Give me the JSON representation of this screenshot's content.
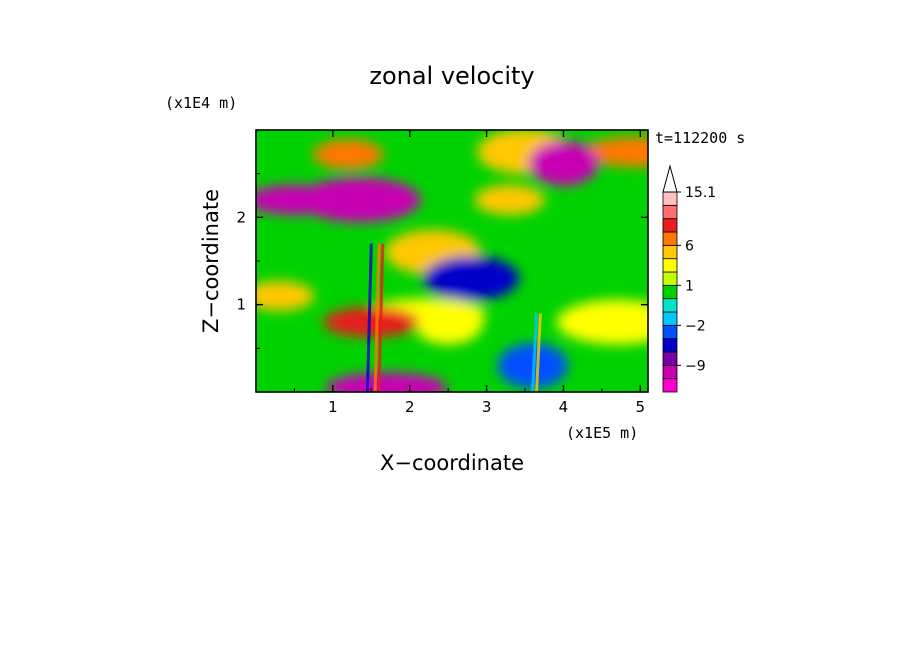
{
  "chart_data": {
    "type": "heatmap",
    "title": "zonal velocity",
    "xlabel": "X−coordinate",
    "ylabel": "Z−coordinate",
    "x_unit": "(x1E5 m)",
    "y_unit": "(x1E4 m)",
    "time_label": "t=112200 s",
    "xlim": [
      0,
      5.1
    ],
    "ylim": [
      0,
      3.0
    ],
    "x_ticks": [
      1,
      2,
      3,
      4,
      5
    ],
    "x_tick_labels": [
      "1",
      "2",
      "3",
      "4",
      "5"
    ],
    "y_ticks": [
      1,
      2
    ],
    "y_tick_labels": [
      "1",
      "2"
    ],
    "colorbar": {
      "tick_labels": [
        "15.1",
        "6",
        "1",
        "−2",
        "−9"
      ],
      "tick_values": [
        15.1,
        6,
        1,
        -2,
        -9
      ],
      "levels": [
        -15,
        -12,
        -9,
        -6,
        -3,
        -2,
        -1,
        0,
        1,
        2,
        3,
        6,
        9,
        12,
        15.1
      ],
      "colors": [
        "#ff00cc",
        "#c800b4",
        "#7800a8",
        "#0000c8",
        "#0050ff",
        "#00c8ff",
        "#00e4c8",
        "#00d200",
        "#c8ff00",
        "#ffff00",
        "#ffc800",
        "#ff7800",
        "#e81e1e",
        "#ff7070",
        "#ffc0c0"
      ],
      "extend": "max"
    },
    "features": [
      {
        "x": 1.2,
        "z": 2.72,
        "value": 7
      },
      {
        "x": 3.5,
        "z": 2.75,
        "value": 5
      },
      {
        "x": 5.0,
        "z": 2.75,
        "value": 6
      },
      {
        "x": 4.0,
        "z": 2.62,
        "value": -12
      },
      {
        "x": 0.5,
        "z": 2.2,
        "value": -12
      },
      {
        "x": 1.35,
        "z": 2.2,
        "value": -11
      },
      {
        "x": 3.3,
        "z": 2.2,
        "value": 5
      },
      {
        "x": 2.3,
        "z": 1.6,
        "value": 5
      },
      {
        "x": 2.2,
        "z": 0.9,
        "value": 2.5
      },
      {
        "x": 2.5,
        "z": 0.8,
        "value": 2
      },
      {
        "x": 1.5,
        "z": 0.8,
        "value": 9
      },
      {
        "x": 4.7,
        "z": 0.8,
        "value": 2
      },
      {
        "x": 0.3,
        "z": 1.1,
        "value": 3
      },
      {
        "x": 2.8,
        "z": 1.3,
        "value": -6
      },
      {
        "x": 1.7,
        "z": 0.05,
        "value": -11
      },
      {
        "x": 3.6,
        "z": 0.3,
        "value": -3
      }
    ]
  }
}
